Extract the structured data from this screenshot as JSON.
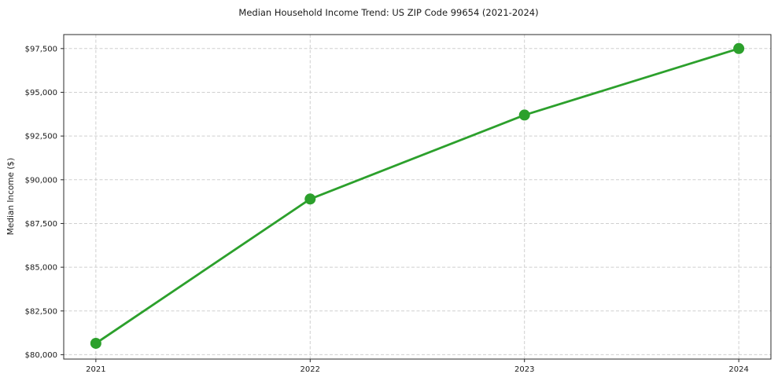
{
  "chart_data": {
    "type": "line",
    "title": "Median Household Income Trend: US ZIP Code 99654 (2021-2024)",
    "xlabel": "",
    "ylabel": "Median Income ($)",
    "x": [
      2021,
      2022,
      2023,
      2024
    ],
    "values": [
      80650,
      88900,
      93700,
      97500
    ],
    "xticks": [
      2021,
      2022,
      2023,
      2024
    ],
    "xticklabels": [
      "2021",
      "2022",
      "2023",
      "2024"
    ],
    "yticks": [
      80000,
      82500,
      85000,
      87500,
      90000,
      92500,
      95000,
      97500
    ],
    "yticklabels": [
      "$80,000",
      "$82,500",
      "$85,000",
      "$87,500",
      "$90,000",
      "$92,500",
      "$95,000",
      "$97,500"
    ],
    "xlim": [
      2020.85,
      2024.15
    ],
    "ylim": [
      79750,
      98300
    ],
    "grid": true,
    "grid_style": "dashed",
    "legend": "none",
    "line_color": "#2ca02c",
    "marker": "circle",
    "marker_color": "#2ca02c",
    "grid_color": "#cfcfcf",
    "spine_color": "#2b2b2b",
    "text_color": "#1a1a1a",
    "background_color": "#ffffff"
  }
}
